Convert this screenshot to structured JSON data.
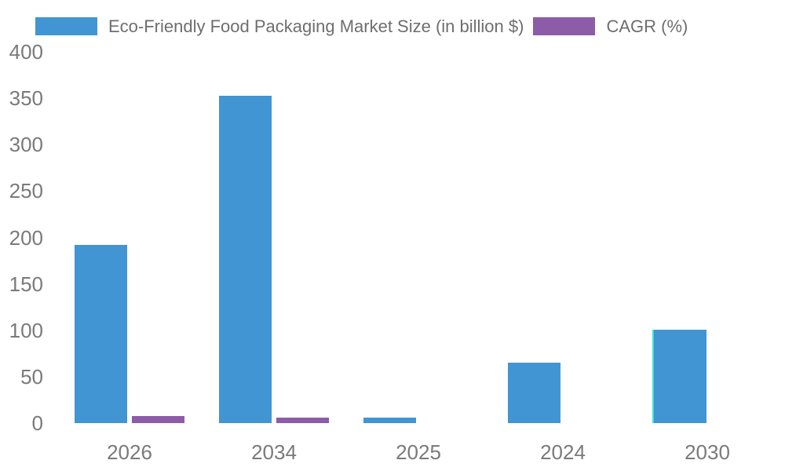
{
  "legend": {
    "items": [
      {
        "label": "Eco-Friendly Food Packaging Market Size (in billion $)",
        "color": "#4195d2"
      },
      {
        "label": "CAGR (%)",
        "color": "#8c5ca8"
      }
    ]
  },
  "chart_data": {
    "type": "bar",
    "title": "",
    "xlabel": "",
    "ylabel": "",
    "categories": [
      "2026",
      "2034",
      "2025",
      "2024",
      "2030"
    ],
    "series": [
      {
        "name": "Eco-Friendly Food Packaging Market Size (in billion $)",
        "color": "#4195d2",
        "values": [
          192,
          352.5,
          6,
          65.5,
          100.5
        ]
      },
      {
        "name": "CAGR (%)",
        "color": "#8c5ca8",
        "values": [
          7.5,
          6,
          0,
          0,
          0
        ]
      }
    ],
    "ylim": [
      0,
      400
    ],
    "yticks": [
      0,
      50,
      100,
      150,
      200,
      250,
      300,
      350,
      400
    ],
    "grid": false,
    "axis_lines": false,
    "legend_position": "top",
    "tick_label_color": "#7a7a7a",
    "legend_text_color": "#6e6e6e",
    "annotations": {
      "cyan_left_edge_category": "2030",
      "cyan_edge_color": "#3fe0dc"
    }
  }
}
